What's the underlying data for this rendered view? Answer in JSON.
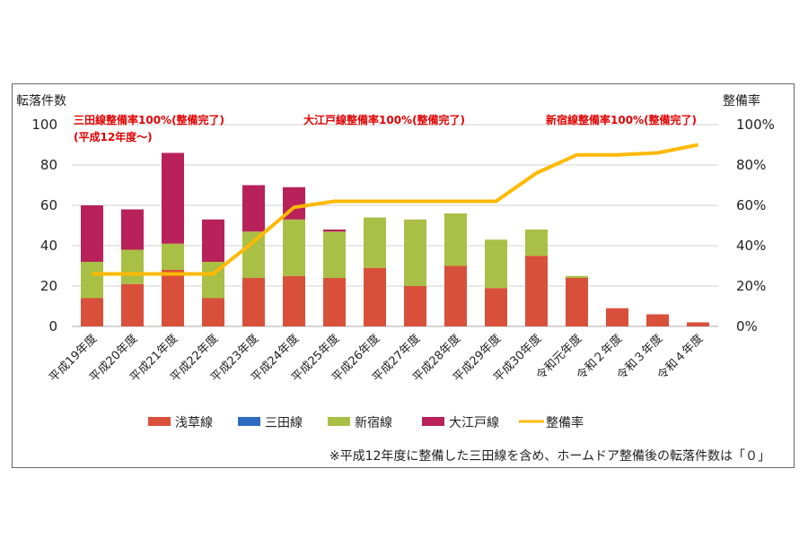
{
  "chart_data": {
    "type": "bar",
    "stacked": true,
    "ylabel": "転落件数",
    "y2label": "整備率",
    "ylim": [
      0,
      100
    ],
    "y2lim": [
      0,
      100
    ],
    "yticks": [
      "0",
      "20",
      "40",
      "60",
      "80",
      "100"
    ],
    "y2ticks": [
      "0%",
      "20%",
      "40%",
      "60%",
      "80%",
      "100%"
    ],
    "grid": true,
    "legend_position": "bottom",
    "categories": [
      "平成19年度",
      "平成20年度",
      "平成21年度",
      "平成22年度",
      "平成23年度",
      "平成24年度",
      "平成25年度",
      "平成26年度",
      "平成27年度",
      "平成28年度",
      "平成29年度",
      "平成30年度",
      "令和元年度",
      "令和２年度",
      "令和３年度",
      "令和４年度"
    ],
    "series": [
      {
        "name": "浅草線",
        "type": "bar",
        "color": "#d9503a",
        "values": [
          14,
          21,
          28,
          14,
          24,
          25,
          24,
          29,
          20,
          30,
          19,
          35,
          24,
          9,
          6,
          2
        ]
      },
      {
        "name": "三田線",
        "type": "bar",
        "color": "#2e6cc0",
        "values": [
          0,
          0,
          0,
          0,
          0,
          0,
          0,
          0,
          0,
          0,
          0,
          0,
          0,
          0,
          0,
          0
        ]
      },
      {
        "name": "新宿線",
        "type": "bar",
        "color": "#aabf45",
        "values": [
          18,
          17,
          13,
          18,
          23,
          28,
          23,
          25,
          33,
          26,
          24,
          13,
          1,
          0,
          0,
          0
        ]
      },
      {
        "name": "大江戸線",
        "type": "bar",
        "color": "#b8215a",
        "values": [
          28,
          20,
          45,
          21,
          23,
          16,
          1,
          0,
          0,
          0,
          0,
          0,
          0,
          0,
          0,
          0
        ]
      },
      {
        "name": "整備率",
        "type": "line",
        "axis": "right",
        "unit": "%",
        "color": "#ffb900",
        "values": [
          26,
          26,
          26,
          26,
          42,
          59,
          62,
          62,
          62,
          62,
          62,
          76,
          85,
          85,
          86,
          90
        ]
      }
    ],
    "annotations": [
      "三田線整備率100%(整備完了)",
      "(平成12年度～)",
      "大江戸線整備率100%(整備完了)",
      "新宿線整備率100%(整備完了)"
    ],
    "note": "※平成12年度に整備した三田線を含め、ホームドア整備後の転落件数は「０」"
  }
}
